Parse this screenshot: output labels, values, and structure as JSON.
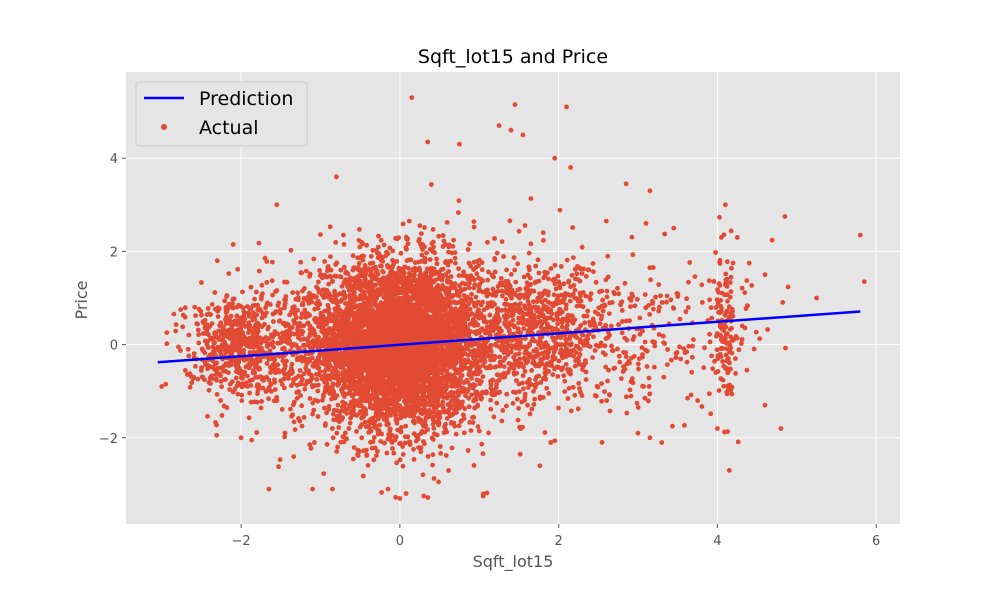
{
  "chart_data": {
    "type": "scatter",
    "title": "Sqft_lot15 and Price",
    "xlabel": "Sqft_lot15",
    "ylabel": "Price",
    "xlim": [
      -3.45,
      6.3
    ],
    "ylim": [
      -3.85,
      5.85
    ],
    "xticks": [
      -2,
      0,
      2,
      4,
      6
    ],
    "xtick_labels": [
      "−2",
      "0",
      "2",
      "4",
      "6"
    ],
    "yticks": [
      -2,
      0,
      2,
      4
    ],
    "ytick_labels": [
      "−2",
      "0",
      "2",
      "4"
    ],
    "grid": true,
    "legend_position": "top-left",
    "series": [
      {
        "name": "Prediction",
        "type": "line",
        "color": "#0000ff",
        "x": [
          -3.05,
          5.8
        ],
        "y": [
          -0.38,
          0.71
        ]
      },
      {
        "name": "Actual",
        "type": "scatter",
        "color": "#e24a33",
        "clusters": [
          {
            "cx": 0.0,
            "cy": 0.0,
            "sx": 0.45,
            "sy": 0.9,
            "n": 2600
          },
          {
            "cx": -0.4,
            "cy": 0.1,
            "sx": 0.35,
            "sy": 0.75,
            "n": 900
          },
          {
            "cx": 0.3,
            "cy": 0.1,
            "sx": 0.35,
            "sy": 0.8,
            "n": 900
          },
          {
            "cx": 0.0,
            "cy": -0.2,
            "sx": 0.55,
            "sy": 1.1,
            "n": 700
          },
          {
            "cx": -2.1,
            "cy": 0.0,
            "sx": 0.3,
            "sy": 0.55,
            "n": 550
          },
          {
            "cx": 1.8,
            "cy": 0.3,
            "sx": 0.35,
            "sy": 0.75,
            "n": 550
          },
          {
            "cx": 2.6,
            "cy": 0.2,
            "sx": 0.5,
            "sy": 0.8,
            "n": 250
          },
          {
            "cx": 4.1,
            "cy": 0.2,
            "sx": 0.06,
            "sy": 0.8,
            "n": 120
          },
          {
            "cx": 3.8,
            "cy": 0.3,
            "sx": 0.55,
            "sy": 0.7,
            "n": 90
          },
          {
            "cx": -1.2,
            "cy": 0.0,
            "sx": 0.35,
            "sy": 0.8,
            "n": 400
          },
          {
            "cx": 1.1,
            "cy": 0.2,
            "sx": 0.35,
            "sy": 0.9,
            "n": 400
          }
        ],
        "outliers": [
          {
            "x": 0.15,
            "y": 5.3
          },
          {
            "x": 1.45,
            "y": 5.15
          },
          {
            "x": 2.1,
            "y": 5.1
          },
          {
            "x": 1.25,
            "y": 4.7
          },
          {
            "x": 1.4,
            "y": 4.6
          },
          {
            "x": 1.55,
            "y": 4.5
          },
          {
            "x": 0.35,
            "y": 4.35
          },
          {
            "x": 0.75,
            "y": 4.3
          },
          {
            "x": 1.95,
            "y": 4.0
          },
          {
            "x": 2.15,
            "y": 3.8
          },
          {
            "x": 2.85,
            "y": 3.45
          },
          {
            "x": 3.15,
            "y": 3.3
          },
          {
            "x": 4.1,
            "y": 3.0
          },
          {
            "x": 4.85,
            "y": 2.75
          },
          {
            "x": 5.8,
            "y": 2.35
          },
          {
            "x": 5.85,
            "y": 1.35
          },
          {
            "x": 5.25,
            "y": 1.0
          },
          {
            "x": -1.55,
            "y": 3.0
          },
          {
            "x": -0.8,
            "y": 3.6
          },
          {
            "x": -2.1,
            "y": 2.15
          },
          {
            "x": -2.3,
            "y": 1.8
          },
          {
            "x": -2.95,
            "y": -0.85
          },
          {
            "x": -3.0,
            "y": -0.9
          },
          {
            "x": -2.0,
            "y": -2.0
          },
          {
            "x": -1.65,
            "y": -3.1
          },
          {
            "x": -1.1,
            "y": -3.1
          },
          {
            "x": -0.85,
            "y": -3.1
          },
          {
            "x": -0.15,
            "y": -3.1
          },
          {
            "x": 0.0,
            "y": -3.3
          },
          {
            "x": 0.3,
            "y": -3.25
          },
          {
            "x": 1.05,
            "y": -3.25
          },
          {
            "x": 3.15,
            "y": -2.0
          },
          {
            "x": 3.3,
            "y": -2.1
          },
          {
            "x": 3.0,
            "y": -1.9
          },
          {
            "x": 4.0,
            "y": -1.8
          },
          {
            "x": 4.15,
            "y": -2.7
          },
          {
            "x": 4.8,
            "y": -1.8
          },
          {
            "x": 4.6,
            "y": -1.3
          },
          {
            "x": 3.75,
            "y": -1.2
          },
          {
            "x": 1.9,
            "y": -2.1
          },
          {
            "x": 2.6,
            "y": 2.65
          },
          {
            "x": 3.1,
            "y": 2.6
          },
          {
            "x": 3.45,
            "y": 2.5
          },
          {
            "x": 4.05,
            "y": 2.3
          },
          {
            "x": 4.25,
            "y": 2.3
          },
          {
            "x": 4.4,
            "y": 1.75
          },
          {
            "x": 4.6,
            "y": 1.5
          }
        ]
      }
    ]
  }
}
